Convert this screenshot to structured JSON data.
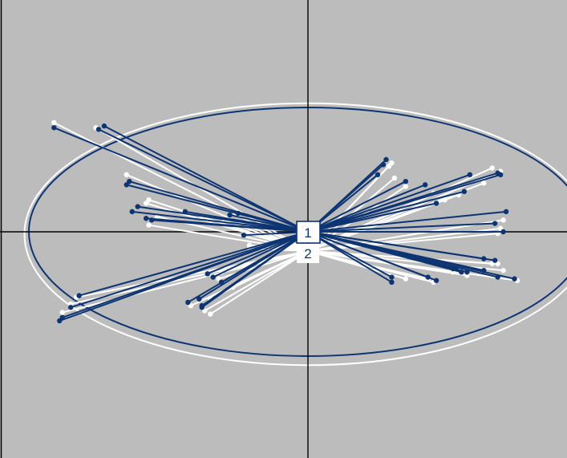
{
  "chart_data": {
    "type": "scatter",
    "title": "",
    "xlabel": "",
    "ylabel": "",
    "xlim": [
      -1.1,
      0.95
    ],
    "ylim": [
      -0.8,
      0.8
    ],
    "grid": false,
    "origin": {
      "x": 0,
      "y": 0
    },
    "colors": {
      "background": "#bcbcbc",
      "series1": "#0d3473",
      "series2": "#ffffff",
      "axes": "#000000"
    },
    "center_labels": [
      "1",
      "2"
    ],
    "series": [
      {
        "color": "#0d3473",
        "center": [
          0.0,
          0.0
        ],
        "ellipse": {
          "rx": 1.0,
          "ry": 0.74
        },
        "points": [
          [
            -0.91,
            0.62
          ],
          [
            -0.73,
            0.63
          ],
          [
            -0.75,
            0.61
          ],
          [
            -0.64,
            0.3
          ],
          [
            -0.65,
            0.28
          ],
          [
            -0.61,
            0.15
          ],
          [
            -0.63,
            0.12
          ],
          [
            -0.58,
            0.08
          ],
          [
            -0.56,
            0.07
          ],
          [
            -0.44,
            0.12
          ],
          [
            -0.28,
            0.1
          ],
          [
            -0.25,
            0.11
          ],
          [
            -0.23,
            -0.02
          ],
          [
            0.28,
            0.43
          ],
          [
            0.27,
            0.4
          ],
          [
            0.25,
            0.34
          ],
          [
            0.35,
            0.3
          ],
          [
            0.42,
            0.28
          ],
          [
            0.58,
            0.34
          ],
          [
            0.68,
            0.35
          ],
          [
            0.69,
            0.34
          ],
          [
            0.56,
            0.24
          ],
          [
            0.46,
            0.17
          ],
          [
            0.71,
            0.12
          ],
          [
            0.67,
            0.05
          ],
          [
            0.7,
            0.0
          ],
          [
            0.63,
            -0.16
          ],
          [
            0.67,
            -0.17
          ],
          [
            0.63,
            -0.23
          ],
          [
            0.53,
            -0.22
          ],
          [
            0.57,
            -0.24
          ],
          [
            0.52,
            -0.22
          ],
          [
            0.68,
            -0.27
          ],
          [
            0.74,
            -0.28
          ],
          [
            0.3,
            -0.27
          ],
          [
            0.3,
            -0.3
          ],
          [
            0.43,
            -0.27
          ],
          [
            0.46,
            -0.29
          ],
          [
            0.55,
            -0.24
          ],
          [
            -0.82,
            -0.38
          ],
          [
            -0.85,
            -0.45
          ],
          [
            -0.88,
            -0.51
          ],
          [
            -0.89,
            -0.53
          ],
          [
            -0.36,
            -0.25
          ],
          [
            -0.34,
            -0.27
          ],
          [
            -0.39,
            -0.4
          ],
          [
            -0.43,
            -0.42
          ],
          [
            -0.38,
            -0.45
          ],
          [
            -0.38,
            -0.44
          ],
          [
            -0.31,
            -0.3
          ]
        ]
      },
      {
        "color": "#ffffff",
        "center": [
          0.0,
          -0.08
        ],
        "ellipse": {
          "rx": 1.01,
          "ry": 0.77
        },
        "points": [
          [
            -0.91,
            0.65
          ],
          [
            -0.76,
            0.62
          ],
          [
            -0.65,
            0.34
          ],
          [
            -0.57,
            0.19
          ],
          [
            -0.58,
            0.17
          ],
          [
            -0.54,
            0.09
          ],
          [
            -0.57,
            0.04
          ],
          [
            -0.38,
            0.09
          ],
          [
            -0.3,
            0.07
          ],
          [
            -0.21,
            -0.08
          ],
          [
            0.3,
            0.41
          ],
          [
            0.29,
            0.39
          ],
          [
            0.31,
            0.32
          ],
          [
            0.35,
            0.27
          ],
          [
            0.45,
            0.23
          ],
          [
            0.54,
            0.22
          ],
          [
            0.66,
            0.38
          ],
          [
            0.69,
            0.36
          ],
          [
            0.63,
            0.29
          ],
          [
            0.49,
            0.19
          ],
          [
            0.7,
            0.07
          ],
          [
            0.69,
            0.02
          ],
          [
            0.68,
            -0.01
          ],
          [
            0.66,
            -0.19
          ],
          [
            0.68,
            -0.19
          ],
          [
            0.7,
            -0.23
          ],
          [
            0.52,
            -0.24
          ],
          [
            0.57,
            -0.26
          ],
          [
            0.75,
            -0.29
          ],
          [
            0.43,
            -0.28
          ],
          [
            0.45,
            -0.3
          ],
          [
            0.35,
            -0.28
          ],
          [
            -0.83,
            -0.39
          ],
          [
            -0.85,
            -0.43
          ],
          [
            -0.88,
            -0.48
          ],
          [
            -0.31,
            -0.24
          ],
          [
            -0.32,
            -0.28
          ],
          [
            -0.27,
            -0.33
          ],
          [
            -0.35,
            -0.4
          ],
          [
            -0.37,
            -0.47
          ],
          [
            -0.35,
            -0.49
          ],
          [
            -0.42,
            -0.44
          ],
          [
            -0.21,
            -0.1
          ]
        ]
      }
    ]
  }
}
